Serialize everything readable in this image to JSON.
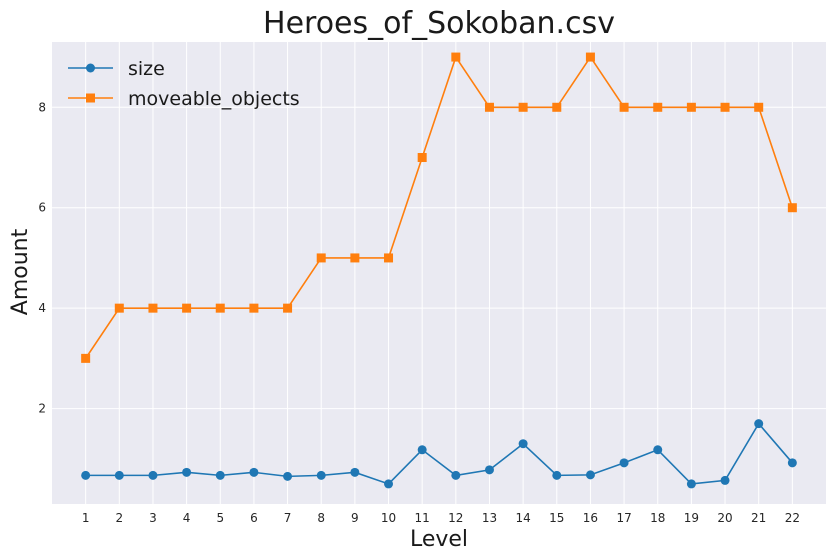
{
  "chart_data": {
    "type": "line",
    "title": "Heroes_of_Sokoban.csv",
    "xlabel": "Level",
    "ylabel": "Amount",
    "x": [
      1,
      2,
      3,
      4,
      5,
      6,
      7,
      8,
      9,
      10,
      11,
      12,
      13,
      14,
      15,
      16,
      17,
      18,
      19,
      20,
      21,
      22
    ],
    "x_tick_labels": [
      "1",
      "2",
      "3",
      "4",
      "5",
      "6",
      "7",
      "8",
      "9",
      "10",
      "11",
      "12",
      "13",
      "14",
      "15",
      "16",
      "17",
      "18",
      "19",
      "20",
      "21",
      "22"
    ],
    "y_ticks": [
      2,
      4,
      6,
      8
    ],
    "y_tick_labels": [
      "2",
      "4",
      "6",
      "8"
    ],
    "ylim": [
      0.1,
      9.3
    ],
    "xlim": [
      0,
      23
    ],
    "grid": true,
    "legend_position": "top-left",
    "series": [
      {
        "name": "size",
        "color": "#1f77b4",
        "marker": "circle",
        "values": [
          0.67,
          0.67,
          0.67,
          0.73,
          0.67,
          0.73,
          0.65,
          0.67,
          0.73,
          0.5,
          1.18,
          0.67,
          0.78,
          1.3,
          0.67,
          0.68,
          0.92,
          1.18,
          0.5,
          0.57,
          1.7,
          0.92
        ]
      },
      {
        "name": "moveable_objects",
        "color": "#ff7f0e",
        "marker": "square",
        "values": [
          3,
          4,
          4,
          4,
          4,
          4,
          4,
          5,
          5,
          5,
          7,
          9,
          8,
          8,
          8,
          9,
          8,
          8,
          8,
          8,
          8,
          6
        ]
      }
    ]
  }
}
